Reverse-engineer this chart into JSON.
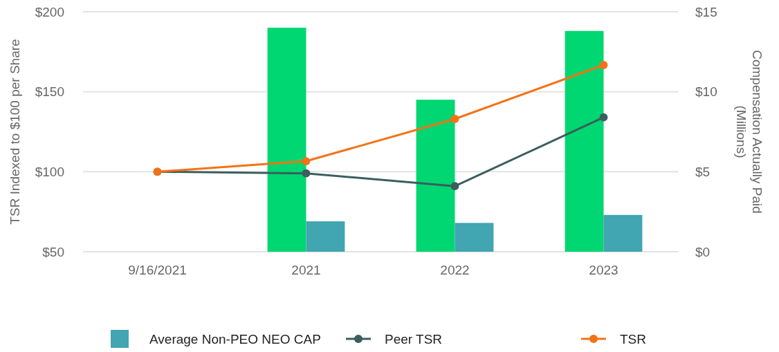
{
  "chart_data": {
    "type": "bar",
    "ylabel": "TSR Indexed to $100 per Share",
    "y2label": "Compensation Actually Paid\n(Millions)",
    "categories": [
      "9/16/2021",
      "2021",
      "2022",
      "2023"
    ],
    "series": [
      {
        "axis": "y2",
        "color": "#00d672",
        "values": [
          null,
          14.0,
          9.5,
          13.8
        ]
      },
      {
        "axis": "y2",
        "name": "Average Non-PEO NEO CAP",
        "color": "#41a5b2",
        "values": [
          null,
          1.9,
          1.8,
          2.3
        ]
      },
      {
        "type": "line",
        "name": "Peer TSR",
        "color": "#3b5e5e",
        "values": [
          100,
          99,
          91,
          134
        ]
      },
      {
        "type": "line",
        "name": "TSR",
        "color": "#f47216",
        "values": [
          100,
          106.6,
          133,
          166.7
        ]
      }
    ],
    "ylim": [
      50,
      200
    ],
    "yticks": [
      {
        "value": 50,
        "label": "$50"
      },
      {
        "value": 100,
        "label": "$100"
      },
      {
        "value": 150,
        "label": "$150"
      },
      {
        "value": 200,
        "label": "$200"
      }
    ],
    "y2lim": [
      0,
      15
    ],
    "y2ticks": [
      {
        "value": 0,
        "label": "$0"
      },
      {
        "value": 5,
        "label": "$5"
      },
      {
        "value": 10,
        "label": "$10"
      },
      {
        "value": 15,
        "label": "$15"
      }
    ],
    "grid": "y",
    "legend": "bottom",
    "marker": "circle"
  }
}
